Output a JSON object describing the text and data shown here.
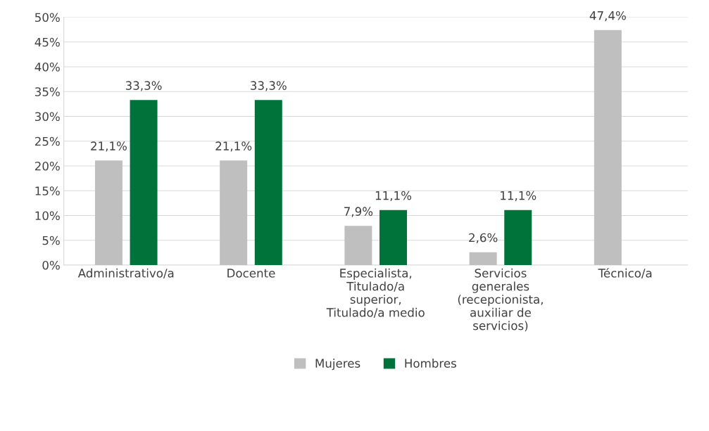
{
  "chart_data": {
    "type": "bar",
    "categories": [
      "Administrativo/a",
      "Docente",
      "Especialista,\nTitulado/a\nsuperior,\nTitulado/a medio",
      "Servicios\ngenerales\n(recepcionista,\nauxiliar de\nservicios)",
      "Técnico/a"
    ],
    "series": [
      {
        "name": "Mujeres",
        "color": "#bfbfbf",
        "values": [
          21.1,
          21.1,
          7.9,
          2.6,
          47.4
        ],
        "value_labels": [
          "21,1%",
          "21,1%",
          "7,9%",
          "2,6%",
          "47,4%"
        ]
      },
      {
        "name": "Hombres",
        "color": "#00733a",
        "values": [
          33.3,
          33.3,
          11.1,
          11.1,
          null
        ],
        "value_labels": [
          "33,3%",
          "33,3%",
          "11,1%",
          "11,1%",
          null
        ]
      }
    ],
    "ylim": [
      0,
      50
    ],
    "yticks": [
      {
        "value": 0,
        "label": "0%"
      },
      {
        "value": 5,
        "label": "5%"
      },
      {
        "value": 10,
        "label": "10%"
      },
      {
        "value": 15,
        "label": "15%"
      },
      {
        "value": 20,
        "label": "20%"
      },
      {
        "value": 25,
        "label": "25%"
      },
      {
        "value": 30,
        "label": "30%"
      },
      {
        "value": 35,
        "label": "35%"
      },
      {
        "value": 40,
        "label": "40%"
      },
      {
        "value": 45,
        "label": "45%"
      },
      {
        "value": 50,
        "label": "50%"
      }
    ],
    "grid": "y",
    "legend": "bottom"
  }
}
